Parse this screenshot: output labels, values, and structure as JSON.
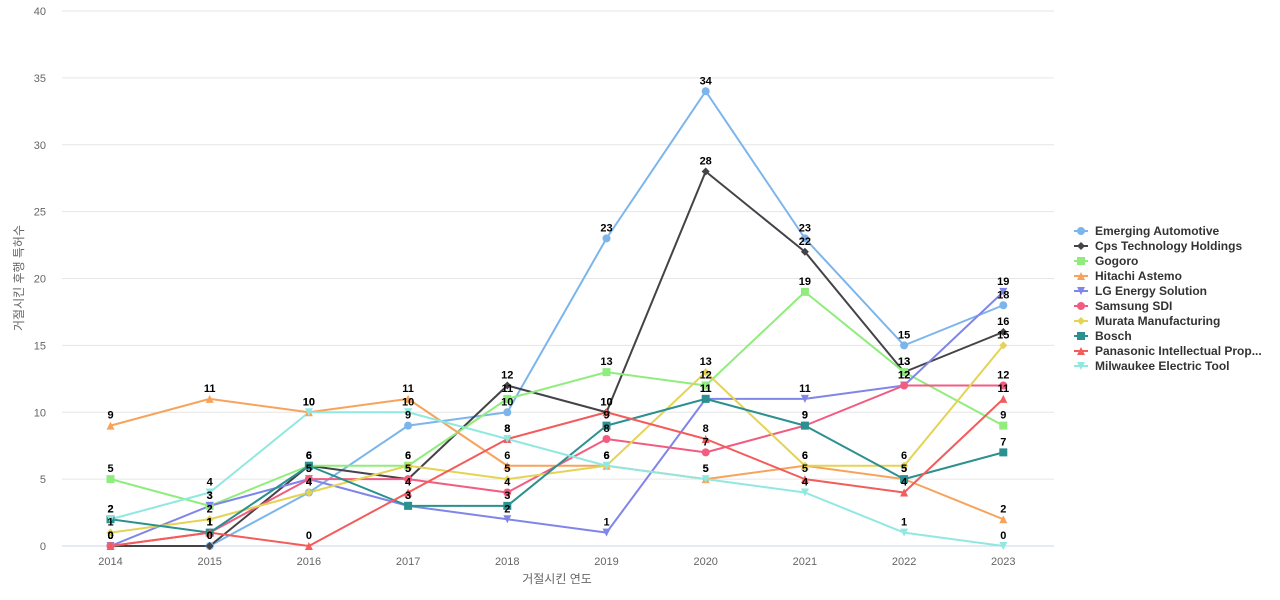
{
  "chart_data": {
    "type": "line",
    "title": "",
    "xlabel": "거절시킨 연도",
    "ylabel": "거절시킨 후행 특허수",
    "ylim": [
      0,
      40
    ],
    "yticks": [
      0,
      5,
      10,
      15,
      20,
      25,
      30,
      35,
      40
    ],
    "x": [
      "2014",
      "2015",
      "2016",
      "2017",
      "2018",
      "2019",
      "2020",
      "2021",
      "2022",
      "2023"
    ],
    "grid": true,
    "legend": "right",
    "series": [
      {
        "name": "Emerging Automotive",
        "color": "#7cb5ec",
        "marker": "circle",
        "values": [
          0,
          0,
          4,
          9,
          10,
          23,
          34,
          23,
          15,
          18
        ]
      },
      {
        "name": "Cps Technology Holdings",
        "color": "#434348",
        "marker": "diamond",
        "values": [
          0,
          0,
          6,
          5,
          12,
          10,
          28,
          22,
          13,
          16
        ]
      },
      {
        "name": "Gogoro",
        "color": "#90ed7d",
        "marker": "square",
        "values": [
          5,
          3,
          6,
          6,
          11,
          13,
          12,
          19,
          13,
          9
        ]
      },
      {
        "name": "Hitachi Astemo",
        "color": "#f7a35c",
        "marker": "triangle",
        "values": [
          9,
          11,
          10,
          11,
          6,
          6,
          5,
          6,
          5,
          2
        ]
      },
      {
        "name": "LG Energy Solution",
        "color": "#8085e9",
        "marker": "triangle-down",
        "values": [
          0,
          3,
          5,
          3,
          2,
          1,
          11,
          11,
          12,
          19
        ]
      },
      {
        "name": "Samsung SDI",
        "color": "#f15c80",
        "marker": "circle",
        "values": [
          0,
          1,
          5,
          5,
          4,
          8,
          7,
          9,
          12,
          12
        ]
      },
      {
        "name": "Murata Manufacturing",
        "color": "#e4d354",
        "marker": "diamond",
        "values": [
          1,
          2,
          4,
          6,
          5,
          6,
          13,
          6,
          6,
          15
        ]
      },
      {
        "name": "Bosch",
        "color": "#2b908f",
        "marker": "square",
        "values": [
          2,
          1,
          6,
          3,
          3,
          9,
          11,
          9,
          5,
          7
        ]
      },
      {
        "name": "Panasonic Intellectual Prop...",
        "color": "#f45b5b",
        "marker": "triangle",
        "values": [
          0,
          1,
          0,
          4,
          8,
          10,
          8,
          5,
          4,
          11
        ]
      },
      {
        "name": "Milwaukee Electric Tool",
        "color": "#91e8e1",
        "marker": "triangle-down",
        "values": [
          2,
          4,
          10,
          10,
          8,
          6,
          5,
          4,
          1,
          0
        ]
      }
    ]
  }
}
